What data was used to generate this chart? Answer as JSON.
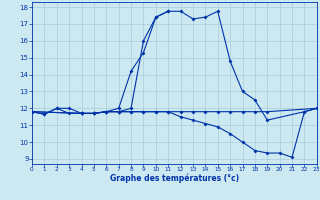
{
  "title": "Graphe des températures (°c)",
  "bg_color": "#cce8f0",
  "grid_color": "#aaccd8",
  "line_color": "#0033aa",
  "xlim": [
    0,
    23
  ],
  "ylim": [
    8.7,
    18.3
  ],
  "yticks": [
    9,
    10,
    11,
    12,
    13,
    14,
    15,
    16,
    17,
    18
  ],
  "xticks": [
    0,
    1,
    2,
    3,
    4,
    5,
    6,
    7,
    8,
    9,
    10,
    11,
    12,
    13,
    14,
    15,
    16,
    17,
    18,
    19,
    20,
    21,
    22,
    23
  ],
  "series": [
    {
      "x": [
        0,
        1,
        2,
        3,
        4,
        5,
        6,
        7,
        8,
        9,
        10,
        11,
        12,
        13,
        14,
        15,
        16,
        17,
        18,
        19,
        22,
        23
      ],
      "y": [
        11.8,
        11.65,
        12.0,
        12.0,
        11.7,
        11.7,
        11.8,
        11.8,
        12.0,
        16.0,
        17.4,
        17.75,
        17.75,
        17.3,
        17.4,
        17.75,
        14.8,
        13.0,
        12.5,
        11.3,
        11.8,
        12.0
      ]
    },
    {
      "x": [
        0,
        1,
        2,
        3,
        4,
        5,
        6,
        7,
        8,
        9,
        10,
        11
      ],
      "y": [
        11.8,
        11.65,
        12.0,
        11.7,
        11.7,
        11.7,
        11.8,
        12.0,
        14.2,
        15.3,
        17.4,
        17.75
      ]
    },
    {
      "x": [
        0,
        4,
        5,
        6,
        7,
        8,
        9,
        10,
        11,
        12,
        13,
        14,
        15,
        16,
        17,
        18,
        19,
        23
      ],
      "y": [
        11.8,
        11.7,
        11.7,
        11.8,
        11.8,
        11.8,
        11.8,
        11.8,
        11.8,
        11.8,
        11.8,
        11.8,
        11.8,
        11.8,
        11.8,
        11.8,
        11.8,
        12.0
      ]
    },
    {
      "x": [
        0,
        4,
        5,
        6,
        7,
        8,
        9,
        10,
        11,
        12,
        13,
        14,
        15,
        16,
        17,
        18,
        19,
        20,
        21,
        22,
        23
      ],
      "y": [
        11.8,
        11.7,
        11.7,
        11.8,
        11.8,
        11.8,
        11.8,
        11.8,
        11.8,
        11.5,
        11.3,
        11.1,
        10.9,
        10.5,
        10.0,
        9.5,
        9.35,
        9.35,
        9.1,
        11.8,
        12.0
      ]
    }
  ]
}
